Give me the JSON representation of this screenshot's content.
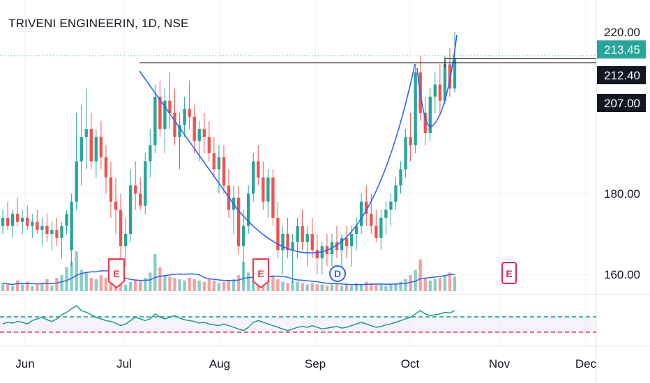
{
  "header": {
    "symbol_title": "TRIVENI ENGINEERIN, 1D, NSE"
  },
  "chart_data": {
    "type": "candlestick",
    "title": "TRIVENI ENGINEERIN, 1D, NSE",
    "y_axis": {
      "side": "right",
      "ticks": [
        "220.00",
        "180.00",
        "160.00"
      ],
      "tick_values": [
        220,
        180,
        160
      ]
    },
    "x_axis": {
      "ticks": [
        "Jun",
        "Jul",
        "Aug",
        "Sep",
        "Oct",
        "Nov",
        "Dec"
      ]
    },
    "price_tags": [
      {
        "label": "213.45",
        "value": 213.45,
        "color": "#26a69a"
      },
      {
        "label": "212.40",
        "value": 212.4,
        "color": "#131722"
      },
      {
        "label": "207.00",
        "value": 207.0,
        "color": "#131722"
      }
    ],
    "horizontal_lines": [
      {
        "name": "resistance",
        "value": 212.4
      },
      {
        "name": "breakout-high",
        "value": 213.45
      }
    ],
    "colors": {
      "up": "#26a69a",
      "down": "#ef5350",
      "ma": "#2962ff",
      "curve": "#2962ff",
      "line": "#131722"
    },
    "candles": [
      {
        "o": 172,
        "h": 176,
        "l": 170,
        "c": 174
      },
      {
        "o": 174,
        "h": 178,
        "l": 171,
        "c": 172
      },
      {
        "o": 172,
        "h": 176,
        "l": 169,
        "c": 175
      },
      {
        "o": 175,
        "h": 179,
        "l": 172,
        "c": 173
      },
      {
        "o": 173,
        "h": 176,
        "l": 170,
        "c": 174
      },
      {
        "o": 174,
        "h": 177,
        "l": 171,
        "c": 172
      },
      {
        "o": 172,
        "h": 175,
        "l": 169,
        "c": 173
      },
      {
        "o": 173,
        "h": 176,
        "l": 170,
        "c": 171
      },
      {
        "o": 171,
        "h": 174,
        "l": 167,
        "c": 172
      },
      {
        "o": 172,
        "h": 175,
        "l": 168,
        "c": 170
      },
      {
        "o": 170,
        "h": 173,
        "l": 166,
        "c": 171
      },
      {
        "o": 171,
        "h": 174,
        "l": 167,
        "c": 169
      },
      {
        "o": 169,
        "h": 173,
        "l": 164,
        "c": 172
      },
      {
        "o": 172,
        "h": 176,
        "l": 170,
        "c": 175
      },
      {
        "o": 166,
        "h": 180,
        "l": 162,
        "c": 178
      },
      {
        "o": 178,
        "h": 200,
        "l": 176,
        "c": 188
      },
      {
        "o": 188,
        "h": 202,
        "l": 182,
        "c": 194
      },
      {
        "o": 194,
        "h": 206,
        "l": 186,
        "c": 196
      },
      {
        "o": 196,
        "h": 200,
        "l": 186,
        "c": 188
      },
      {
        "o": 188,
        "h": 196,
        "l": 184,
        "c": 194
      },
      {
        "o": 194,
        "h": 198,
        "l": 186,
        "c": 189
      },
      {
        "o": 189,
        "h": 192,
        "l": 180,
        "c": 184
      },
      {
        "o": 184,
        "h": 188,
        "l": 174,
        "c": 178
      },
      {
        "o": 178,
        "h": 184,
        "l": 170,
        "c": 176
      },
      {
        "o": 176,
        "h": 180,
        "l": 164,
        "c": 167
      },
      {
        "o": 167,
        "h": 174,
        "l": 162,
        "c": 170
      },
      {
        "o": 170,
        "h": 186,
        "l": 168,
        "c": 182
      },
      {
        "o": 182,
        "h": 188,
        "l": 176,
        "c": 180
      },
      {
        "o": 180,
        "h": 184,
        "l": 176,
        "c": 177
      },
      {
        "o": 177,
        "h": 190,
        "l": 175,
        "c": 188
      },
      {
        "o": 188,
        "h": 196,
        "l": 184,
        "c": 192
      },
      {
        "o": 192,
        "h": 207,
        "l": 190,
        "c": 204
      },
      {
        "o": 204,
        "h": 208,
        "l": 194,
        "c": 196
      },
      {
        "o": 196,
        "h": 206,
        "l": 190,
        "c": 203
      },
      {
        "o": 203,
        "h": 210,
        "l": 196,
        "c": 200
      },
      {
        "o": 200,
        "h": 206,
        "l": 192,
        "c": 194
      },
      {
        "o": 194,
        "h": 200,
        "l": 186,
        "c": 197
      },
      {
        "o": 197,
        "h": 204,
        "l": 194,
        "c": 201
      },
      {
        "o": 201,
        "h": 208,
        "l": 196,
        "c": 199
      },
      {
        "o": 199,
        "h": 202,
        "l": 190,
        "c": 193
      },
      {
        "o": 193,
        "h": 198,
        "l": 188,
        "c": 196
      },
      {
        "o": 196,
        "h": 200,
        "l": 190,
        "c": 194
      },
      {
        "o": 194,
        "h": 198,
        "l": 188,
        "c": 190
      },
      {
        "o": 190,
        "h": 194,
        "l": 184,
        "c": 186
      },
      {
        "o": 186,
        "h": 192,
        "l": 180,
        "c": 189
      },
      {
        "o": 189,
        "h": 192,
        "l": 180,
        "c": 182
      },
      {
        "o": 182,
        "h": 186,
        "l": 174,
        "c": 176
      },
      {
        "o": 176,
        "h": 182,
        "l": 170,
        "c": 179
      },
      {
        "o": 179,
        "h": 182,
        "l": 165,
        "c": 167
      },
      {
        "o": 167,
        "h": 176,
        "l": 158,
        "c": 172
      },
      {
        "o": 172,
        "h": 182,
        "l": 170,
        "c": 180
      },
      {
        "o": 180,
        "h": 190,
        "l": 178,
        "c": 188
      },
      {
        "o": 188,
        "h": 192,
        "l": 182,
        "c": 184
      },
      {
        "o": 184,
        "h": 188,
        "l": 176,
        "c": 178
      },
      {
        "o": 178,
        "h": 186,
        "l": 174,
        "c": 184
      },
      {
        "o": 184,
        "h": 186,
        "l": 172,
        "c": 174
      },
      {
        "o": 174,
        "h": 178,
        "l": 164,
        "c": 166
      },
      {
        "o": 166,
        "h": 172,
        "l": 160,
        "c": 170
      },
      {
        "o": 170,
        "h": 174,
        "l": 164,
        "c": 166
      },
      {
        "o": 166,
        "h": 170,
        "l": 158,
        "c": 168
      },
      {
        "o": 168,
        "h": 174,
        "l": 164,
        "c": 172
      },
      {
        "o": 172,
        "h": 176,
        "l": 166,
        "c": 168
      },
      {
        "o": 168,
        "h": 172,
        "l": 162,
        "c": 170
      },
      {
        "o": 170,
        "h": 174,
        "l": 164,
        "c": 166
      },
      {
        "o": 166,
        "h": 170,
        "l": 160,
        "c": 164
      },
      {
        "o": 164,
        "h": 168,
        "l": 160,
        "c": 167
      },
      {
        "o": 167,
        "h": 170,
        "l": 162,
        "c": 165
      },
      {
        "o": 165,
        "h": 170,
        "l": 162,
        "c": 168
      },
      {
        "o": 168,
        "h": 172,
        "l": 164,
        "c": 166
      },
      {
        "o": 166,
        "h": 170,
        "l": 162,
        "c": 169
      },
      {
        "o": 169,
        "h": 172,
        "l": 164,
        "c": 167
      },
      {
        "o": 167,
        "h": 172,
        "l": 162,
        "c": 170
      },
      {
        "o": 170,
        "h": 174,
        "l": 166,
        "c": 172
      },
      {
        "o": 172,
        "h": 180,
        "l": 170,
        "c": 178
      },
      {
        "o": 178,
        "h": 182,
        "l": 172,
        "c": 175
      },
      {
        "o": 175,
        "h": 180,
        "l": 170,
        "c": 172
      },
      {
        "o": 172,
        "h": 176,
        "l": 168,
        "c": 169
      },
      {
        "o": 169,
        "h": 176,
        "l": 166,
        "c": 174
      },
      {
        "o": 174,
        "h": 178,
        "l": 170,
        "c": 176
      },
      {
        "o": 176,
        "h": 180,
        "l": 172,
        "c": 178
      },
      {
        "o": 178,
        "h": 184,
        "l": 176,
        "c": 182
      },
      {
        "o": 182,
        "h": 188,
        "l": 180,
        "c": 186
      },
      {
        "o": 186,
        "h": 196,
        "l": 184,
        "c": 194
      },
      {
        "o": 194,
        "h": 200,
        "l": 188,
        "c": 192
      },
      {
        "o": 192,
        "h": 212,
        "l": 190,
        "c": 210
      },
      {
        "o": 210,
        "h": 214,
        "l": 198,
        "c": 200
      },
      {
        "o": 200,
        "h": 204,
        "l": 192,
        "c": 195
      },
      {
        "o": 195,
        "h": 206,
        "l": 193,
        "c": 204
      },
      {
        "o": 204,
        "h": 210,
        "l": 200,
        "c": 207
      },
      {
        "o": 207,
        "h": 212,
        "l": 200,
        "c": 203
      },
      {
        "o": 203,
        "h": 214,
        "l": 202,
        "c": 212
      },
      {
        "o": 212,
        "h": 216,
        "l": 204,
        "c": 206
      },
      {
        "o": 206,
        "h": 220,
        "l": 205,
        "c": 213.45
      }
    ],
    "volume": [
      6,
      5,
      4,
      8,
      5,
      7,
      4,
      5,
      6,
      9,
      4,
      10,
      12,
      18,
      22,
      30,
      16,
      14,
      10,
      9,
      12,
      10,
      8,
      7,
      6,
      5,
      7,
      9,
      8,
      10,
      14,
      28,
      18,
      12,
      11,
      10,
      9,
      8,
      10,
      9,
      8,
      7,
      9,
      8,
      6,
      7,
      8,
      9,
      12,
      22,
      14,
      8,
      9,
      10,
      8,
      12,
      9,
      7,
      6,
      8,
      7,
      6,
      5,
      6,
      5,
      5,
      4,
      5,
      6,
      4,
      5,
      4,
      6,
      5,
      7,
      6,
      5,
      5,
      4,
      5,
      6,
      7,
      9,
      12,
      16,
      24,
      10,
      8,
      9,
      10,
      12,
      14,
      11
    ],
    "earnings_events": [
      {
        "label": "E",
        "kind": "past"
      },
      {
        "label": "E",
        "kind": "past"
      },
      {
        "label": "D",
        "kind": "dividend"
      },
      {
        "label": "E",
        "kind": "upcoming"
      }
    ],
    "oscillator": {
      "upper_band_color": "#089981",
      "lower_band_color": "#f23645",
      "values": [
        44,
        46,
        45,
        47,
        46,
        44,
        48,
        50,
        52,
        49,
        47,
        50,
        55,
        58,
        62,
        66,
        60,
        58,
        55,
        52,
        50,
        48,
        47,
        45,
        42,
        44,
        48,
        52,
        50,
        48,
        50,
        56,
        52,
        50,
        52,
        54,
        51,
        49,
        48,
        47,
        45,
        46,
        44,
        43,
        42,
        44,
        42,
        40,
        38,
        36,
        40,
        46,
        48,
        46,
        44,
        42,
        40,
        38,
        36,
        38,
        40,
        41,
        40,
        42,
        40,
        38,
        39,
        40,
        41,
        39,
        40,
        42,
        44,
        46,
        44,
        42,
        40,
        41,
        43,
        44,
        46,
        48,
        50,
        52,
        56,
        60,
        56,
        54,
        55,
        56,
        58,
        57,
        60
      ]
    }
  }
}
